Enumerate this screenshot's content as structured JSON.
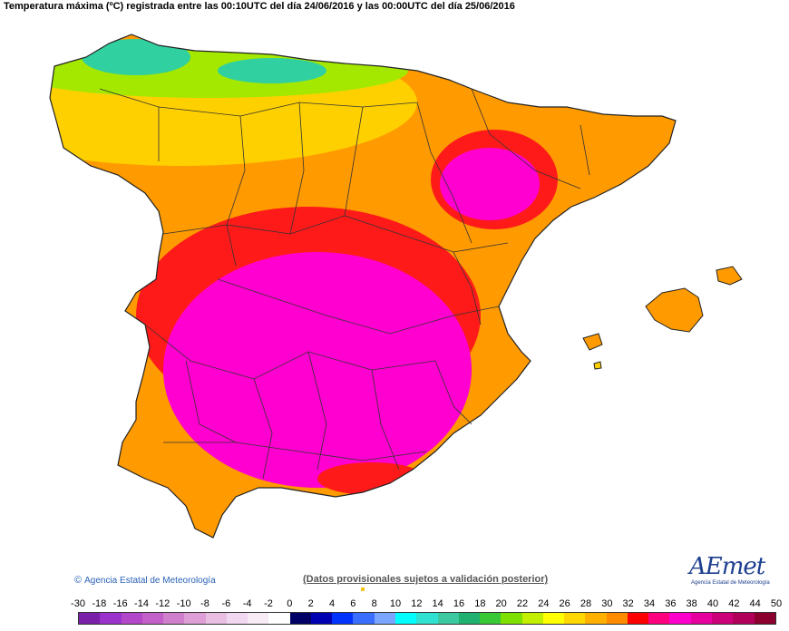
{
  "title": "Temperatura máxima (ºC) registrada entre las 00:10UTC del día 24/06/2016 y las 00:00UTC del día 25/06/2016",
  "credit": {
    "symbol": "©",
    "text": "Agencia Estatal de Meteorología"
  },
  "disclaimer": "(Datos provisionales sujetos a validación posterior)",
  "logo": {
    "text": "AEmet",
    "subtitle": "Agencia Estatal de Meteorología"
  },
  "legend": {
    "labels": [
      "-30",
      "-18",
      "-16",
      "-14",
      "-12",
      "-10",
      "-8",
      "-6",
      "-4",
      "-2",
      "0",
      "2",
      "4",
      "6",
      "8",
      "10",
      "12",
      "14",
      "16",
      "18",
      "20",
      "22",
      "24",
      "26",
      "28",
      "30",
      "32",
      "34",
      "36",
      "38",
      "40",
      "42",
      "44",
      "50"
    ],
    "colors": [
      "#7a1fa8",
      "#9933cc",
      "#b347c9",
      "#c35fc9",
      "#cf7fcc",
      "#dd9fd6",
      "#e8bfe2",
      "#f1d7ef",
      "#f7ebf6",
      "#ffffff",
      "#000066",
      "#0000b3",
      "#0033ff",
      "#3a6eff",
      "#7aa6ff",
      "#00ffff",
      "#30e0d0",
      "#3cc8a0",
      "#20b070",
      "#38c838",
      "#7ee000",
      "#c2ef00",
      "#ffff00",
      "#ffd700",
      "#ffb000",
      "#ff8c00",
      "#ff0000",
      "#ff007f",
      "#ff00cc",
      "#e6009e",
      "#cc0078",
      "#b0005a",
      "#8c0030"
    ]
  },
  "colors": {
    "title_text": "#000000",
    "credit_text": "#2a62b7",
    "map_hot": "#ff00d0",
    "map_very_warm": "#ff1a1a",
    "map_warm": "#ff9a00",
    "map_mild": "#ffd000",
    "map_cool": "#7ee000",
    "map_cold": "#30d0a0"
  }
}
